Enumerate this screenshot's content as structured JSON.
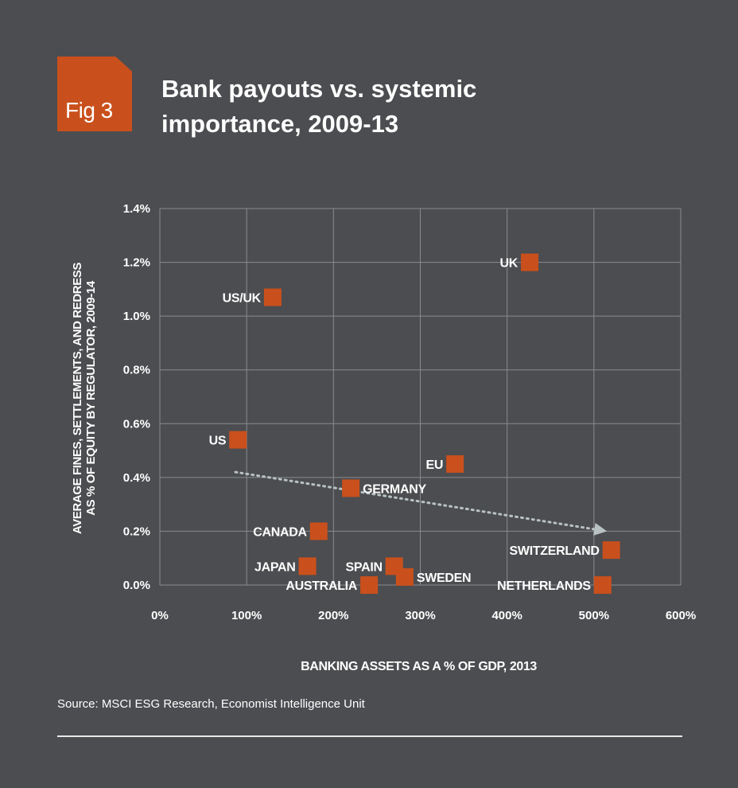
{
  "badge": {
    "label": "Fig 3"
  },
  "title": {
    "line1": "Bank payouts vs. systemic",
    "line2": "importance, 2009-13"
  },
  "source": "Source: MSCI ESG Research, Economist Intelligence Unit",
  "colors": {
    "background": "#4c4d50",
    "accent": "#c9501c",
    "grid": "#8a8b8e",
    "trend": "#b8c2c2"
  },
  "chart_data": {
    "type": "scatter",
    "xlabel": "BANKING ASSETS AS A % OF GDP, 2013",
    "ylabel_lines": [
      "AVERAGE FINES, SETTLEMENTS, AND REDRESS",
      "AS % OF EQUITY BY REGULATOR, 2009-14"
    ],
    "xlim": [
      0,
      600
    ],
    "ylim": [
      0,
      1.4
    ],
    "x_ticks": [
      0,
      100,
      200,
      300,
      400,
      500,
      600
    ],
    "x_tick_labels": [
      "0%",
      "100%",
      "200%",
      "300%",
      "400%",
      "500%",
      "600%"
    ],
    "y_ticks": [
      0,
      0.2,
      0.4,
      0.6,
      0.8,
      1.0,
      1.2,
      1.4
    ],
    "y_tick_labels": [
      "0.0%",
      "0.2%",
      "0.4%",
      "0.6%",
      "0.8%",
      "1.0%",
      "1.2%",
      "1.4%"
    ],
    "grid": true,
    "points": [
      {
        "label": "UK",
        "x": 426,
        "y": 1.2,
        "label_side": "left"
      },
      {
        "label": "US/UK",
        "x": 130,
        "y": 1.07,
        "label_side": "left"
      },
      {
        "label": "US",
        "x": 90,
        "y": 0.54,
        "label_side": "left"
      },
      {
        "label": "EU",
        "x": 340,
        "y": 0.45,
        "label_side": "left"
      },
      {
        "label": "GERMANY",
        "x": 220,
        "y": 0.36,
        "label_side": "right"
      },
      {
        "label": "CANADA",
        "x": 183,
        "y": 0.2,
        "label_side": "left"
      },
      {
        "label": "JAPAN",
        "x": 170,
        "y": 0.07,
        "label_side": "left"
      },
      {
        "label": "SPAIN",
        "x": 270,
        "y": 0.07,
        "label_side": "left"
      },
      {
        "label": "SWEDEN",
        "x": 282,
        "y": 0.03,
        "label_side": "right"
      },
      {
        "label": "AUSTRALIA",
        "x": 241,
        "y": 0.0,
        "label_side": "left"
      },
      {
        "label": "SWITZERLAND",
        "x": 520,
        "y": 0.13,
        "label_side": "left"
      },
      {
        "label": "NETHERLANDS",
        "x": 510,
        "y": 0.0,
        "label_side": "left"
      }
    ],
    "trendline": {
      "x": [
        87,
        515
      ],
      "y": [
        0.42,
        0.2
      ],
      "arrow": true
    }
  }
}
